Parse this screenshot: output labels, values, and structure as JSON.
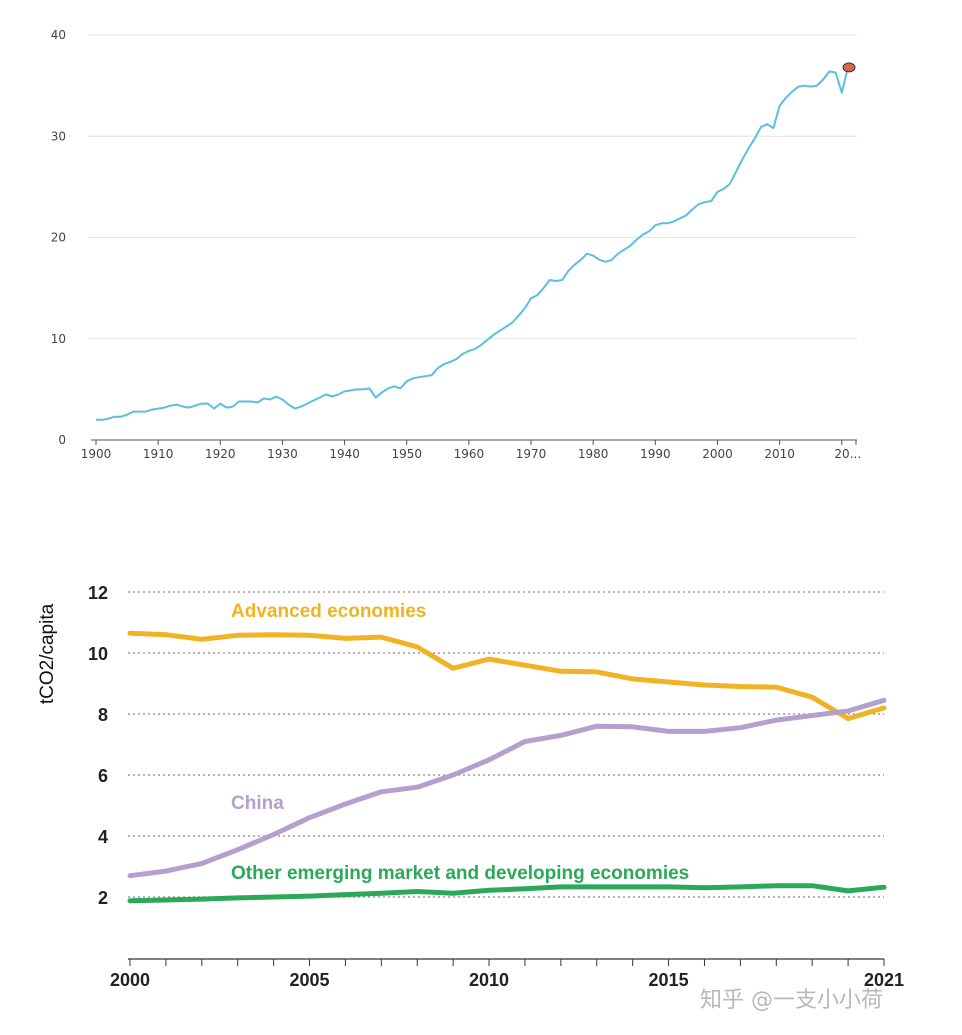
{
  "chart_data": [
    {
      "type": "line",
      "title": "",
      "xlabel": "",
      "ylabel": "",
      "ylim": [
        0,
        40
      ],
      "xlim": [
        1900,
        2021
      ],
      "yticks": [
        "0",
        "10",
        "20",
        "30",
        "40"
      ],
      "xticks": [
        "1900",
        "1910",
        "1920",
        "1930",
        "1940",
        "1950",
        "1960",
        "1970",
        "1980",
        "1990",
        "2000",
        "2010",
        "20..."
      ],
      "grid": true,
      "color": "#5bbfe0",
      "marker_color": "#d9664d",
      "series": [
        {
          "x": [
            1900,
            1901,
            1902,
            1903,
            1904,
            1905,
            1906,
            1907,
            1908,
            1909,
            1910,
            1911,
            1912,
            1913,
            1914,
            1915,
            1916,
            1917,
            1918,
            1919,
            1920,
            1921,
            1922,
            1923,
            1924,
            1925,
            1926,
            1927,
            1928,
            1929,
            1930,
            1931,
            1932,
            1933,
            1934,
            1935,
            1936,
            1937,
            1938,
            1939,
            1940,
            1941,
            1942,
            1943,
            1944,
            1945,
            1946,
            1947,
            1948,
            1949,
            1950,
            1951,
            1952,
            1953,
            1954,
            1955,
            1956,
            1957,
            1958,
            1959,
            1960,
            1961,
            1962,
            1963,
            1964,
            1965,
            1966,
            1967,
            1968,
            1969,
            1970,
            1971,
            1972,
            1973,
            1974,
            1975,
            1976,
            1977,
            1978,
            1979,
            1980,
            1981,
            1982,
            1983,
            1984,
            1985,
            1986,
            1987,
            1988,
            1989,
            1990,
            1991,
            1992,
            1993,
            1994,
            1995,
            1996,
            1997,
            1998,
            1999,
            2000,
            2001,
            2002,
            2003,
            2004,
            2005,
            2006,
            2007,
            2008,
            2009,
            2010,
            2011,
            2012,
            2013,
            2014,
            2015,
            2016,
            2017,
            2018,
            2019,
            2020,
            2021
          ],
          "values": [
            2.0,
            2.0,
            2.1,
            2.3,
            2.3,
            2.5,
            2.8,
            2.8,
            2.8,
            3.0,
            3.1,
            3.2,
            3.4,
            3.5,
            3.3,
            3.2,
            3.4,
            3.6,
            3.6,
            3.1,
            3.6,
            3.2,
            3.3,
            3.8,
            3.8,
            3.8,
            3.7,
            4.1,
            4.0,
            4.3,
            4.0,
            3.5,
            3.1,
            3.3,
            3.6,
            3.9,
            4.2,
            4.5,
            4.3,
            4.5,
            4.8,
            4.9,
            5.0,
            5.0,
            5.1,
            4.2,
            4.7,
            5.1,
            5.3,
            5.1,
            5.8,
            6.1,
            6.2,
            6.3,
            6.4,
            7.1,
            7.5,
            7.7,
            8.0,
            8.5,
            8.8,
            9.0,
            9.4,
            9.9,
            10.4,
            10.8,
            11.2,
            11.6,
            12.3,
            13.0,
            14.0,
            14.3,
            15.0,
            15.8,
            15.7,
            15.8,
            16.7,
            17.3,
            17.8,
            18.4,
            18.2,
            17.8,
            17.6,
            17.8,
            18.4,
            18.8,
            19.2,
            19.8,
            20.3,
            20.6,
            21.2,
            21.4,
            21.4,
            21.6,
            21.9,
            22.2,
            22.8,
            23.3,
            23.5,
            23.6,
            24.5,
            24.8,
            25.3,
            26.5,
            27.7,
            28.8,
            29.8,
            30.9,
            31.2,
            30.8,
            33.0,
            33.8,
            34.4,
            34.9,
            35.0,
            34.9,
            35.0,
            35.6,
            36.4,
            36.3,
            34.3,
            36.8
          ]
        }
      ]
    },
    {
      "type": "line",
      "title": "",
      "xlabel": "",
      "ylabel": "tCO2/capita",
      "ylim": [
        0,
        12
      ],
      "xlim": [
        2000,
        2021
      ],
      "yticks": [
        "2",
        "4",
        "6",
        "8",
        "10",
        "12"
      ],
      "xticks": [
        "2000",
        "2005",
        "2010",
        "2015",
        "2021"
      ],
      "grid": "dotted",
      "x": [
        2000,
        2001,
        2002,
        2003,
        2004,
        2005,
        2006,
        2007,
        2008,
        2009,
        2010,
        2011,
        2012,
        2013,
        2014,
        2015,
        2016,
        2017,
        2018,
        2019,
        2020,
        2021
      ],
      "series": [
        {
          "name": "Advanced economies",
          "color": "#f0b323",
          "values": [
            10.65,
            10.6,
            10.45,
            10.58,
            10.6,
            10.58,
            10.48,
            10.52,
            10.2,
            9.5,
            9.8,
            9.6,
            9.4,
            9.38,
            9.15,
            9.05,
            8.95,
            8.9,
            8.88,
            8.55,
            7.85,
            8.2
          ]
        },
        {
          "name": "China",
          "color": "#b4a0cc",
          "values": [
            2.7,
            2.85,
            3.1,
            3.55,
            4.05,
            4.6,
            5.05,
            5.45,
            5.6,
            6.0,
            6.5,
            7.1,
            7.3,
            7.6,
            7.58,
            7.43,
            7.43,
            7.55,
            7.8,
            7.95,
            8.1,
            8.45
          ]
        },
        {
          "name": "Other emerging market and developing economies",
          "color": "#2ca85a",
          "values": [
            1.88,
            1.9,
            1.93,
            1.97,
            2.0,
            2.03,
            2.08,
            2.12,
            2.18,
            2.12,
            2.22,
            2.27,
            2.33,
            2.33,
            2.33,
            2.33,
            2.3,
            2.33,
            2.37,
            2.37,
            2.2,
            2.32
          ]
        }
      ]
    }
  ],
  "watermark": "知乎 @一支小小荷"
}
